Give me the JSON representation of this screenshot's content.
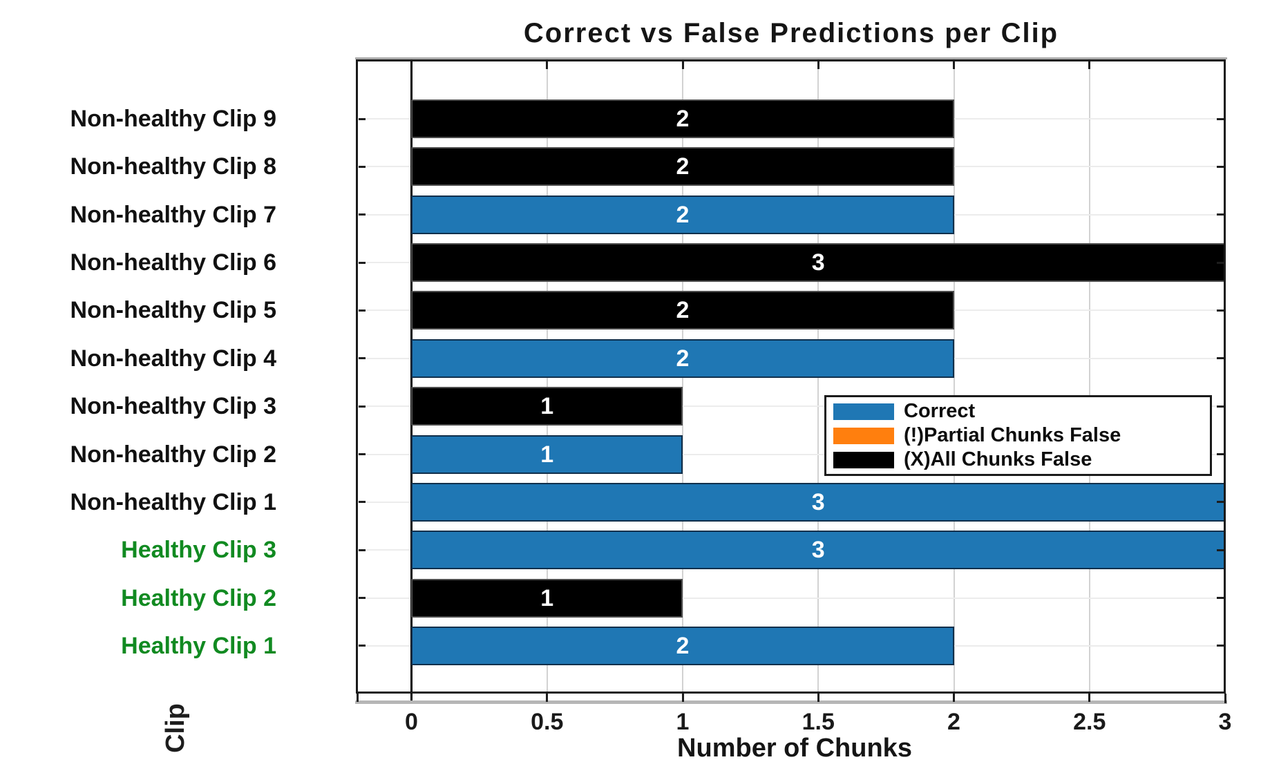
{
  "title": "Correct vs False Predictions per Clip",
  "axes": {
    "xlabel": "Number of Chunks",
    "ylabel": "Clip",
    "x_tick_labels": [
      "0",
      "0.5",
      "1",
      "1.5",
      "2",
      "2.5",
      "3"
    ]
  },
  "legend": {
    "items": [
      {
        "label": "Correct",
        "color": "#1F77B4"
      },
      {
        "label": "(!)Partial Chunks False",
        "color": "#FF7F0E"
      },
      {
        "label": "(X)All Chunks False",
        "color": "#000000"
      }
    ]
  },
  "colors": {
    "correct_bar": "#1F77B4",
    "partial_bar": "#FF7F0E",
    "all_false_bar": "#000000",
    "healthy_label": "#118A21",
    "non_healthy_label": "#111111",
    "bar_value_text": "#ffffff"
  },
  "chart_data": {
    "type": "bar",
    "orientation": "horizontal",
    "title": "Correct vs False Predictions per Clip",
    "xlabel": "Number of Chunks",
    "ylabel": "Clip",
    "xlim": [
      -0.2,
      3.0
    ],
    "x_ticks": [
      0,
      0.5,
      1,
      1.5,
      2,
      2.5,
      3
    ],
    "grid": true,
    "legend_position": "middle-right",
    "series_legend": [
      {
        "name": "Correct",
        "color": "#1F77B4"
      },
      {
        "name": "(!)Partial Chunks False",
        "color": "#FF7F0E"
      },
      {
        "name": "(X)All Chunks False",
        "color": "#000000"
      }
    ],
    "categories_top_to_bottom": [
      "Non-healthy Clip 9",
      "Non-healthy Clip 8",
      "Non-healthy Clip 7",
      "Non-healthy Clip 6",
      "Non-healthy Clip 5",
      "Non-healthy Clip 4",
      "Non-healthy Clip 3",
      "Non-healthy Clip 2",
      "Non-healthy Clip 1",
      "Healthy Clip 3",
      "Healthy Clip 2",
      "Healthy Clip 1"
    ],
    "rows": [
      {
        "category": "Non-healthy Clip 9",
        "group": "non-healthy",
        "series": "(X)All Chunks False",
        "value": 2
      },
      {
        "category": "Non-healthy Clip 8",
        "group": "non-healthy",
        "series": "(X)All Chunks False",
        "value": 2
      },
      {
        "category": "Non-healthy Clip 7",
        "group": "non-healthy",
        "series": "Correct",
        "value": 2
      },
      {
        "category": "Non-healthy Clip 6",
        "group": "non-healthy",
        "series": "(X)All Chunks False",
        "value": 3
      },
      {
        "category": "Non-healthy Clip 5",
        "group": "non-healthy",
        "series": "(X)All Chunks False",
        "value": 2
      },
      {
        "category": "Non-healthy Clip 4",
        "group": "non-healthy",
        "series": "Correct",
        "value": 2
      },
      {
        "category": "Non-healthy Clip 3",
        "group": "non-healthy",
        "series": "(X)All Chunks False",
        "value": 1
      },
      {
        "category": "Non-healthy Clip 2",
        "group": "non-healthy",
        "series": "Correct",
        "value": 1
      },
      {
        "category": "Non-healthy Clip 1",
        "group": "non-healthy",
        "series": "Correct",
        "value": 3
      },
      {
        "category": "Healthy Clip 3",
        "group": "healthy",
        "series": "Correct",
        "value": 3
      },
      {
        "category": "Healthy Clip 2",
        "group": "healthy",
        "series": "(X)All Chunks False",
        "value": 1
      },
      {
        "category": "Healthy Clip 1",
        "group": "healthy",
        "series": "Correct",
        "value": 2
      }
    ]
  }
}
